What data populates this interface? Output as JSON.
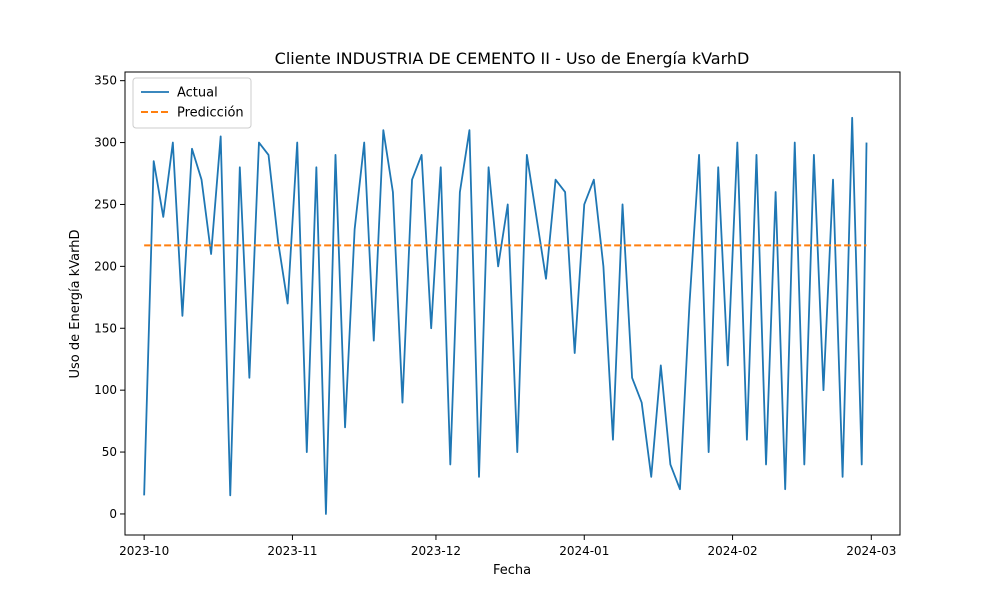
{
  "chart_data": {
    "type": "line",
    "title": "Cliente INDUSTRIA DE CEMENTO II - Uso de Energía kVarhD",
    "xlabel": "Fecha",
    "ylabel": "Uso de Energía kVarhD",
    "xlim": [
      "2023-09-27",
      "2024-03-07"
    ],
    "ylim": [
      -17,
      357
    ],
    "x_ticks": [
      "2023-10",
      "2023-11",
      "2023-12",
      "2024-01",
      "2024-02",
      "2024-03"
    ],
    "y_ticks": [
      0,
      50,
      100,
      150,
      200,
      250,
      300,
      350
    ],
    "grid": false,
    "legend_position": "top-left",
    "series": [
      {
        "name": "Actual",
        "style": "solid",
        "color": "#1f77b4",
        "x": [
          "2023-10-01",
          "2023-10-03",
          "2023-10-05",
          "2023-10-07",
          "2023-10-09",
          "2023-10-11",
          "2023-10-13",
          "2023-10-15",
          "2023-10-17",
          "2023-10-19",
          "2023-10-21",
          "2023-10-23",
          "2023-10-25",
          "2023-10-27",
          "2023-10-29",
          "2023-10-31",
          "2023-11-02",
          "2023-11-04",
          "2023-11-06",
          "2023-11-08",
          "2023-11-10",
          "2023-11-12",
          "2023-11-14",
          "2023-11-16",
          "2023-11-18",
          "2023-11-20",
          "2023-11-22",
          "2023-11-24",
          "2023-11-26",
          "2023-11-28",
          "2023-11-30",
          "2023-12-02",
          "2023-12-04",
          "2023-12-06",
          "2023-12-08",
          "2023-12-10",
          "2023-12-12",
          "2023-12-14",
          "2023-12-16",
          "2023-12-18",
          "2023-12-20",
          "2023-12-22",
          "2023-12-24",
          "2023-12-26",
          "2023-12-28",
          "2023-12-30",
          "2024-01-01",
          "2024-01-03",
          "2024-01-05",
          "2024-01-07",
          "2024-01-09",
          "2024-01-11",
          "2024-01-13",
          "2024-01-15",
          "2024-01-17",
          "2024-01-19",
          "2024-01-21",
          "2024-01-23",
          "2024-01-25",
          "2024-01-27",
          "2024-01-29",
          "2024-01-31",
          "2024-02-02",
          "2024-02-04",
          "2024-02-06",
          "2024-02-08",
          "2024-02-10",
          "2024-02-12",
          "2024-02-14",
          "2024-02-16",
          "2024-02-18",
          "2024-02-20",
          "2024-02-22",
          "2024-02-24",
          "2024-02-26",
          "2024-02-28",
          "2024-02-29"
        ],
        "values": [
          15,
          285,
          240,
          300,
          160,
          295,
          270,
          210,
          305,
          15,
          280,
          110,
          300,
          290,
          220,
          170,
          300,
          50,
          280,
          0,
          290,
          70,
          230,
          300,
          140,
          310,
          260,
          90,
          270,
          290,
          150,
          280,
          40,
          260,
          310,
          30,
          280,
          200,
          250,
          50,
          290,
          240,
          190,
          270,
          260,
          130,
          250,
          270,
          200,
          60,
          250,
          110,
          90,
          30,
          120,
          40,
          20,
          170,
          290,
          50,
          280,
          120,
          300,
          60,
          290,
          40,
          260,
          20,
          300,
          40,
          290,
          100,
          270,
          30,
          320,
          40,
          300
        ]
      },
      {
        "name": "Predicción",
        "style": "dashed",
        "color": "#ff7f0e",
        "x": [
          "2023-10-01",
          "2024-02-29"
        ],
        "values": [
          217,
          217
        ]
      }
    ]
  }
}
